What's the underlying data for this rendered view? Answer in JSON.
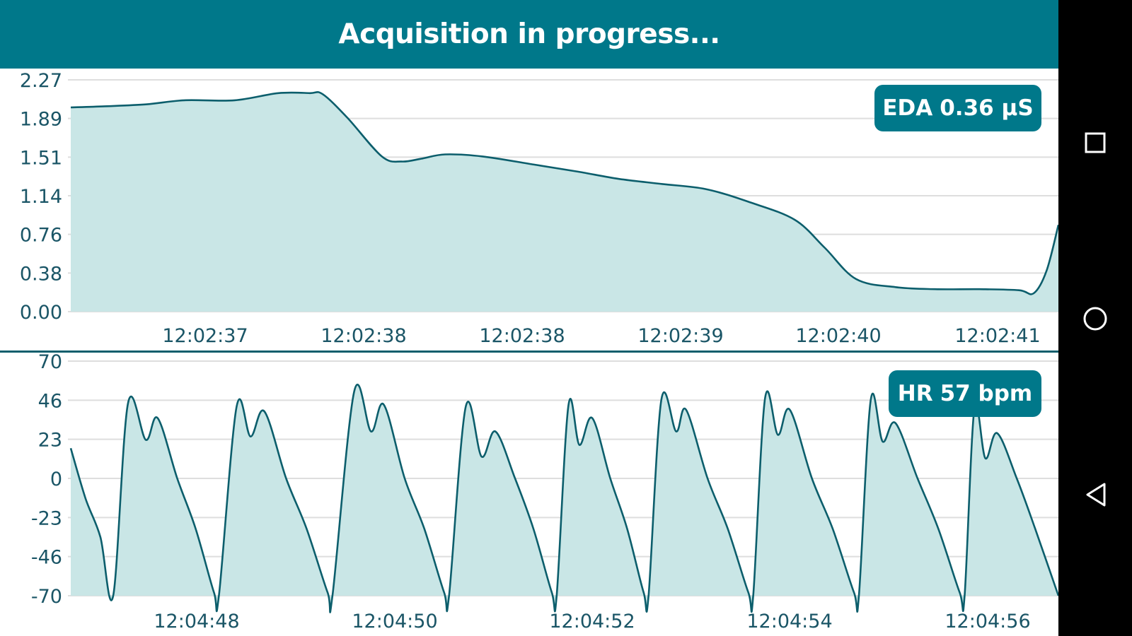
{
  "app_bar": {
    "title": "Acquisition in progress..."
  },
  "nav_bar": {
    "icons": [
      "recents-square-icon",
      "home-circle-icon",
      "back-triangle-icon"
    ]
  },
  "colors": {
    "accent": "#00788a",
    "fill": "#c9e6e6",
    "line": "#0c5e6c",
    "grid": "#dedede",
    "nav": "#000000"
  },
  "eda_badge": {
    "label": "EDA",
    "value": "0.36 μS"
  },
  "hr_badge": {
    "label": "HR",
    "value": "57 bpm"
  },
  "chart_data": [
    {
      "type": "area",
      "name": "EDA",
      "ylim": [
        0.0,
        2.27
      ],
      "y_ticks": [
        "0.00",
        "0.38",
        "0.76",
        "1.14",
        "1.51",
        "1.89",
        "2.27"
      ],
      "x_tick_labels": [
        "12:02:37",
        "12:02:38",
        "12:02:38",
        "12:02:39",
        "12:02:40",
        "12:02:41"
      ],
      "x_range": [
        0,
        100
      ],
      "grid": true,
      "points": [
        [
          0,
          2.0
        ],
        [
          3.2,
          2.01
        ],
        [
          7.6,
          2.03
        ],
        [
          11.5,
          2.07
        ],
        [
          16.6,
          2.07
        ],
        [
          21.0,
          2.14
        ],
        [
          24.2,
          2.14
        ],
        [
          25.5,
          2.13
        ],
        [
          28.0,
          1.9
        ],
        [
          31.5,
          1.52
        ],
        [
          33.5,
          1.47
        ],
        [
          35.6,
          1.5
        ],
        [
          37.9,
          1.54
        ],
        [
          41.7,
          1.52
        ],
        [
          46.9,
          1.44
        ],
        [
          51.4,
          1.37
        ],
        [
          55.5,
          1.3
        ],
        [
          59.9,
          1.25
        ],
        [
          64.3,
          1.2
        ],
        [
          68.8,
          1.07
        ],
        [
          73.3,
          0.9
        ],
        [
          76.3,
          0.63
        ],
        [
          79.5,
          0.32
        ],
        [
          83.5,
          0.24
        ],
        [
          87.5,
          0.22
        ],
        [
          92.0,
          0.22
        ],
        [
          96.0,
          0.21
        ],
        [
          97.5,
          0.18
        ],
        [
          98.8,
          0.4
        ],
        [
          100,
          0.85
        ]
      ]
    },
    {
      "type": "area",
      "name": "HR",
      "ylim": [
        -70,
        70
      ],
      "y_ticks": [
        "-70",
        "-46",
        "-23",
        "0",
        "23",
        "46",
        "70"
      ],
      "x_tick_labels": [
        "12:04:48",
        "12:04:50",
        "12:04:52",
        "12:04:54",
        "12:04:56"
      ],
      "x_range": [
        0,
        100
      ],
      "grid": true,
      "beats": [
        {
          "trough": 4.3,
          "peak1": [
            5.8,
            45
          ],
          "notch": [
            7.6,
            23
          ],
          "peak2": [
            8.8,
            36
          ],
          "tail": [
            -70,
            0
          ]
        },
        {
          "trough": 15.0,
          "peak1": [
            16.8,
            43
          ],
          "notch": [
            18.2,
            25
          ],
          "peak2": [
            19.6,
            40
          ],
          "tail": [
            -70,
            0
          ]
        },
        {
          "trough": 26.5,
          "peak1": [
            28.7,
            52
          ],
          "notch": [
            30.4,
            28
          ],
          "peak2": [
            31.7,
            44
          ],
          "tail": [
            -70,
            0
          ]
        },
        {
          "trough": 38.3,
          "peak1": [
            40.0,
            43
          ],
          "notch": [
            41.6,
            13
          ],
          "peak2": [
            43.0,
            28
          ],
          "tail": [
            -70,
            0
          ]
        },
        {
          "trough": 49.2,
          "peak1": [
            50.4,
            44
          ],
          "notch": [
            51.5,
            20
          ],
          "peak2": [
            52.8,
            36
          ],
          "tail": [
            -70,
            0
          ]
        },
        {
          "trough": 58.5,
          "peak1": [
            59.8,
            47
          ],
          "notch": [
            61.3,
            28
          ],
          "peak2": [
            62.3,
            41
          ],
          "tail": [
            -70,
            0
          ]
        },
        {
          "trough": 69.1,
          "peak1": [
            70.3,
            48
          ],
          "notch": [
            71.6,
            26
          ],
          "peak2": [
            72.8,
            41
          ],
          "tail": [
            -70,
            0
          ]
        },
        {
          "trough": 79.8,
          "peak1": [
            81.0,
            47
          ],
          "notch": [
            82.2,
            22
          ],
          "peak2": [
            83.5,
            33
          ],
          "tail": [
            -70,
            0
          ]
        },
        {
          "trough": 90.5,
          "peak1": [
            91.5,
            42
          ],
          "notch": [
            92.6,
            12
          ],
          "peak2": [
            93.8,
            27
          ],
          "tail": [
            -70,
            0
          ]
        }
      ]
    }
  ]
}
